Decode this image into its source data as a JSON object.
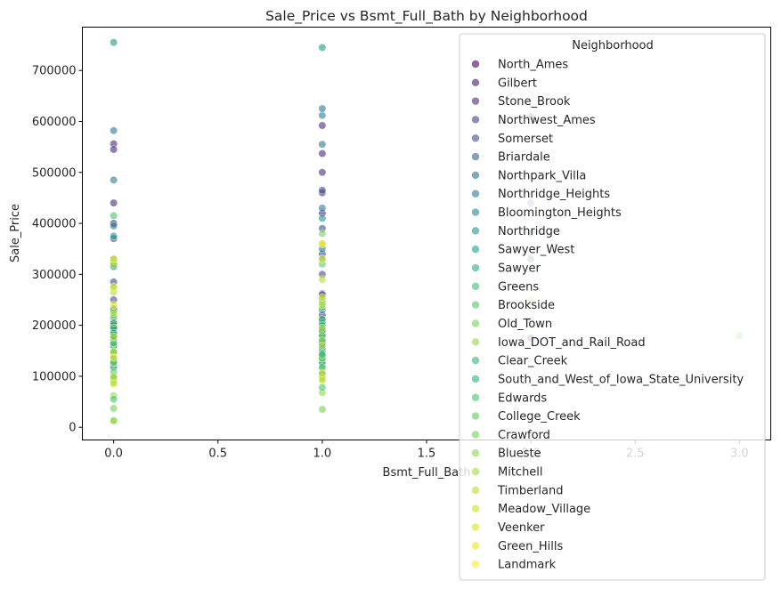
{
  "chart_data": {
    "type": "scatter",
    "title": "Sale_Price vs Bsmt_Full_Bath by Neighborhood",
    "xlabel": "Bsmt_Full_Bath",
    "ylabel": "Sale_Price",
    "xlim": [
      -0.15,
      3.15
    ],
    "ylim": [
      -25000,
      785000
    ],
    "xticks": [
      0.0,
      0.5,
      1.0,
      1.5,
      2.0,
      2.5,
      3.0
    ],
    "xtick_labels": [
      "0.0",
      "0.5",
      "1.0",
      "1.5",
      "2.0",
      "2.5",
      "3.0"
    ],
    "yticks": [
      0,
      100000,
      200000,
      300000,
      400000,
      500000,
      600000,
      700000
    ],
    "ytick_labels": [
      "0",
      "100000",
      "200000",
      "300000",
      "400000",
      "500000",
      "600000",
      "700000"
    ],
    "legend_title": "Neighborhood",
    "legend_location": "upper right",
    "marker_alpha": 0.6,
    "series": [
      {
        "name": "North_Ames",
        "color": "#440154",
        "x": [
          0,
          0,
          0,
          0,
          1,
          1,
          1,
          2
        ],
        "y": [
          134000,
          160000,
          178000,
          200000,
          142000,
          165000,
          189000,
          175000
        ]
      },
      {
        "name": "Gilbert",
        "color": "#481769",
        "x": [
          0,
          0,
          0,
          1,
          1,
          1
        ],
        "y": [
          170000,
          184000,
          196000,
          178000,
          192000,
          210000
        ]
      },
      {
        "name": "Stone_Brook",
        "color": "#472a7a",
        "x": [
          0,
          0,
          0,
          0,
          1,
          1,
          1,
          1,
          1,
          2
        ],
        "y": [
          440000,
          556000,
          545000,
          400000,
          537000,
          592000,
          500000,
          460000,
          420000,
          610000
        ]
      },
      {
        "name": "Northwest_Ames",
        "color": "#433d84",
        "x": [
          0,
          0,
          0,
          1,
          1,
          1
        ],
        "y": [
          180000,
          205000,
          232000,
          188000,
          220000,
          262000
        ]
      },
      {
        "name": "Somerset",
        "color": "#3d4e8a",
        "x": [
          0,
          0,
          0,
          0,
          1,
          1,
          1,
          1,
          1,
          2
        ],
        "y": [
          250000,
          285000,
          320000,
          370000,
          260000,
          300000,
          340000,
          390000,
          465000,
          330000
        ]
      },
      {
        "name": "Briardale",
        "color": "#355e8d",
        "x": [
          0,
          0,
          1,
          1
        ],
        "y": [
          95000,
          120000,
          105000,
          130000
        ]
      },
      {
        "name": "Northpark_Villa",
        "color": "#2e6d8e",
        "x": [
          0,
          0,
          1,
          1
        ],
        "y": [
          130000,
          145000,
          135000,
          150000
        ]
      },
      {
        "name": "Northridge_Heights",
        "color": "#297b8e",
        "x": [
          0,
          0,
          0,
          0,
          1,
          1,
          1,
          1,
          1,
          2
        ],
        "y": [
          330000,
          395000,
          485000,
          582000,
          350000,
          430000,
          555000,
          612000,
          625000,
          440000
        ]
      },
      {
        "name": "Bloomington_Heights",
        "color": "#23898e",
        "x": [
          0,
          0,
          1,
          1
        ],
        "y": [
          195000,
          215000,
          205000,
          230000
        ]
      },
      {
        "name": "Northridge",
        "color": "#1f968b",
        "x": [
          0,
          0,
          0,
          1,
          1,
          1,
          2
        ],
        "y": [
          315000,
          375000,
          755000,
          330000,
          410000,
          745000,
          380000
        ]
      },
      {
        "name": "Sawyer_West",
        "color": "#20a386",
        "x": [
          0,
          0,
          1,
          1
        ],
        "y": [
          160000,
          195000,
          172000,
          205000
        ]
      },
      {
        "name": "Sawyer",
        "color": "#29af7f",
        "x": [
          0,
          0,
          0,
          1,
          1,
          1
        ],
        "y": [
          118000,
          132000,
          145000,
          125000,
          140000,
          155000
        ]
      },
      {
        "name": "Greens",
        "color": "#3dbc74",
        "x": [
          0,
          1
        ],
        "y": [
          195000,
          212000
        ]
      },
      {
        "name": "Brookside",
        "color": "#56c667",
        "x": [
          0,
          0,
          1,
          1
        ],
        "y": [
          108000,
          125000,
          116000,
          135000
        ]
      },
      {
        "name": "Old_Town",
        "color": "#75d054",
        "x": [
          0,
          0,
          0,
          0,
          1,
          1,
          1
        ],
        "y": [
          12000,
          37000,
          88000,
          125000,
          35000,
          95000,
          135000
        ]
      },
      {
        "name": "Iowa_DOT_and_Rail_Road",
        "color": "#95d840",
        "x": [
          0,
          0,
          0,
          1,
          1
        ],
        "y": [
          13000,
          62000,
          92000,
          68000,
          98000
        ]
      },
      {
        "name": "Clear_Creek",
        "color": "#35b779",
        "x": [
          0,
          0,
          1,
          1
        ],
        "y": [
          185000,
          230000,
          200000,
          250000
        ]
      },
      {
        "name": "South_and_West_of_Iowa_State_University",
        "color": "#2fb47c",
        "x": [
          0,
          0,
          1,
          1
        ],
        "y": [
          135000,
          165000,
          145000,
          180000
        ]
      },
      {
        "name": "Edwards",
        "color": "#4ac16d",
        "x": [
          0,
          0,
          0,
          0,
          1,
          1,
          1,
          3
        ],
        "y": [
          55000,
          100000,
          128000,
          415000,
          78000,
          118000,
          142000,
          180000
        ]
      },
      {
        "name": "College_Creek",
        "color": "#5ec962",
        "x": [
          0,
          0,
          0,
          1,
          1,
          1,
          2
        ],
        "y": [
          165000,
          205000,
          275000,
          180000,
          235000,
          320000,
          240000
        ]
      },
      {
        "name": "Crawford",
        "color": "#73d056",
        "x": [
          0,
          0,
          0,
          1,
          1,
          1,
          2
        ],
        "y": [
          175000,
          220000,
          325000,
          190000,
          245000,
          380000,
          210000
        ]
      },
      {
        "name": "Blueste",
        "color": "#89d548",
        "x": [
          0,
          1
        ],
        "y": [
          150000,
          170000
        ]
      },
      {
        "name": "Mitchell",
        "color": "#9fda3a",
        "x": [
          0,
          0,
          1,
          1
        ],
        "y": [
          148000,
          178000,
          160000,
          195000
        ]
      },
      {
        "name": "Timberland",
        "color": "#b5de2b",
        "x": [
          0,
          0,
          0,
          1,
          1,
          1,
          2
        ],
        "y": [
          225000,
          265000,
          320000,
          240000,
          290000,
          360000,
          250000
        ]
      },
      {
        "name": "Meadow_Village",
        "color": "#cae11f",
        "x": [
          0,
          0,
          1,
          1
        ],
        "y": [
          85000,
          98000,
          92000,
          106000
        ]
      },
      {
        "name": "Veenker",
        "color": "#dfe318",
        "x": [
          0,
          0,
          1,
          1
        ],
        "y": [
          240000,
          275000,
          255000,
          330000
        ]
      },
      {
        "name": "Green_Hills",
        "color": "#efe51c",
        "x": [
          0,
          1
        ],
        "y": [
          330000,
          360000
        ]
      },
      {
        "name": "Landmark",
        "color": "#fde725",
        "x": [
          0
        ],
        "y": [
          137000
        ]
      }
    ]
  }
}
